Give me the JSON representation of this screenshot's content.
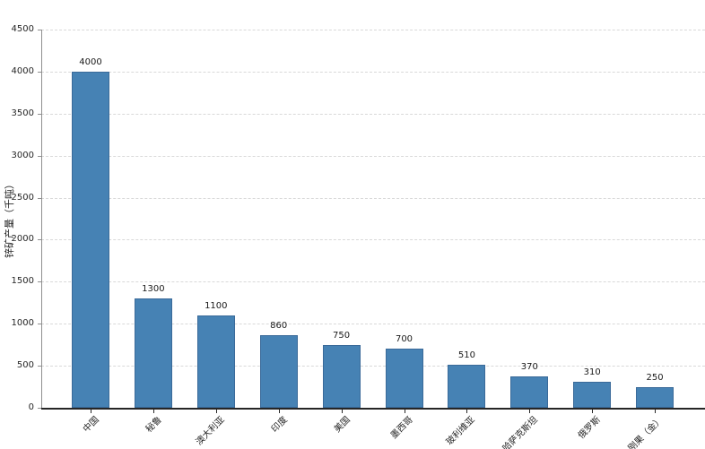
{
  "chart_data": {
    "type": "bar",
    "title": "",
    "categories": [
      "中国",
      "秘鲁",
      "澳大利亚",
      "印度",
      "美国",
      "墨西哥",
      "玻利维亚",
      "哈萨克斯坦",
      "俄罗斯",
      "刚果（金）"
    ],
    "values": [
      4000,
      1300,
      1100,
      860,
      750,
      700,
      510,
      370,
      310,
      250
    ],
    "value_labels": [
      "4000",
      "1300",
      "1100",
      "860",
      "750",
      "700",
      "510",
      "370",
      "310",
      "250"
    ],
    "xlabel": "",
    "ylabel": "锌矿产量（千吨）",
    "ylim": [
      0,
      4500
    ],
    "yticks": [
      0,
      500,
      1000,
      1500,
      2000,
      2500,
      3000,
      3500,
      4000,
      4500
    ],
    "grid": "horizontal-dashed",
    "legend": "none",
    "xtick_rotation": 45,
    "bar_color": "#4682b4",
    "bar_edge_color": "#3a6a99",
    "gridline_color": "#d9d9d9",
    "left_spine_color": "#8f8f8f",
    "bottom_spine_color": "#262626",
    "text_color": "#262626"
  }
}
